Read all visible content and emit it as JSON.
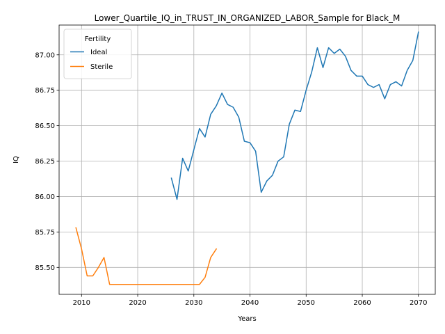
{
  "chart_data": {
    "type": "line",
    "title": "Lower_Quartile_IQ_in_TRUST_IN_ORGANIZED_LABOR_Sample for Black_M",
    "xlabel": "Years",
    "ylabel": "IQ",
    "xlim": [
      2006,
      2073
    ],
    "ylim": [
      85.31,
      87.21
    ],
    "xticks": [
      2010,
      2020,
      2030,
      2040,
      2050,
      2060,
      2070
    ],
    "yticks": [
      85.5,
      85.75,
      86.0,
      86.25,
      86.5,
      86.75,
      87.0
    ],
    "ytick_labels": [
      "85.50",
      "85.75",
      "86.00",
      "86.25",
      "86.50",
      "86.75",
      "87.00"
    ],
    "grid": true,
    "legend": {
      "title": "Fertility",
      "position": "top-left"
    },
    "series": [
      {
        "name": "Ideal",
        "color": "#1f77b4",
        "x": [
          2026,
          2027,
          2028,
          2029,
          2030,
          2031,
          2032,
          2033,
          2034,
          2035,
          2036,
          2037,
          2038,
          2039,
          2040,
          2041,
          2042,
          2043,
          2044,
          2045,
          2046,
          2047,
          2048,
          2049,
          2050,
          2051,
          2052,
          2053,
          2054,
          2055,
          2056,
          2057,
          2058,
          2059,
          2060,
          2061,
          2062,
          2063,
          2064,
          2065,
          2066,
          2067,
          2068,
          2069,
          2070
        ],
        "y": [
          86.13,
          85.98,
          86.27,
          86.18,
          86.33,
          86.48,
          86.42,
          86.58,
          86.64,
          86.73,
          86.65,
          86.63,
          86.56,
          86.39,
          86.38,
          86.32,
          86.03,
          86.11,
          86.15,
          86.25,
          86.28,
          86.51,
          86.61,
          86.6,
          86.75,
          86.88,
          87.05,
          86.91,
          87.05,
          87.01,
          87.04,
          86.99,
          86.89,
          86.85,
          86.85,
          86.79,
          86.77,
          86.79,
          86.69,
          86.79,
          86.81,
          86.78,
          86.89,
          86.96,
          87.16
        ]
      },
      {
        "name": "Sterile",
        "color": "#ff7f0e",
        "x": [
          2009,
          2010,
          2011,
          2012,
          2013,
          2014,
          2015,
          2016,
          2017,
          2018,
          2019,
          2020,
          2021,
          2022,
          2023,
          2024,
          2025,
          2026,
          2027,
          2028,
          2029,
          2030,
          2031,
          2032,
          2033,
          2034
        ],
        "y": [
          85.78,
          85.63,
          85.44,
          85.44,
          85.5,
          85.57,
          85.38,
          85.38,
          85.38,
          85.38,
          85.38,
          85.38,
          85.38,
          85.38,
          85.38,
          85.38,
          85.38,
          85.38,
          85.38,
          85.38,
          85.38,
          85.38,
          85.38,
          85.43,
          85.57,
          85.63
        ]
      }
    ]
  }
}
